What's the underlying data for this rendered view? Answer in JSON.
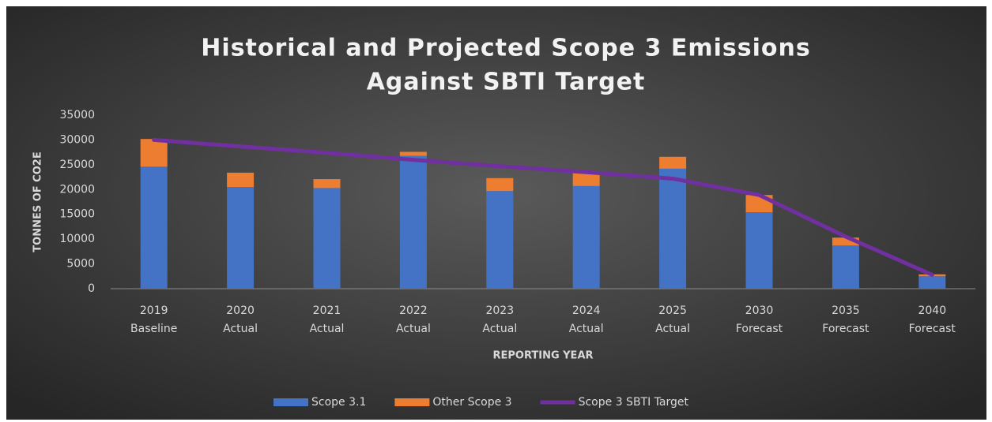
{
  "chart_data": {
    "type": "bar",
    "stacked": true,
    "title": [
      "Historical and Projected Scope 3 Emissions",
      "Against SBTI Target"
    ],
    "y_label": "TONNES OF CO2E",
    "x_label": "REPORTING YEAR",
    "categories": [
      [
        "2019",
        "Baseline"
      ],
      [
        "2020",
        "Actual"
      ],
      [
        "2021",
        "Actual"
      ],
      [
        "2022",
        "Actual"
      ],
      [
        "2023",
        "Actual"
      ],
      [
        "2024",
        "Actual"
      ],
      [
        "2025",
        "Actual"
      ],
      [
        "2030",
        "Forecast"
      ],
      [
        "2035",
        "Forecast"
      ],
      [
        "2040",
        "Forecast"
      ]
    ],
    "series": [
      {
        "name": "Scope 3.1",
        "type": "bar",
        "color": "#4472c4",
        "values": [
          24600,
          20500,
          20300,
          26800,
          19700,
          20700,
          24200,
          15400,
          8700,
          2500
        ]
      },
      {
        "name": "Other Scope 3",
        "type": "bar",
        "color": "#ed7d31",
        "values": [
          5600,
          2900,
          1800,
          800,
          2600,
          2800,
          2400,
          3500,
          1600,
          400
        ]
      },
      {
        "name": "Scope 3 SBTI Target",
        "type": "line",
        "color": "#7030a0",
        "values": [
          30000,
          28700,
          27400,
          26000,
          24700,
          23500,
          22200,
          18900,
          10500,
          2800
        ]
      }
    ],
    "ylim": [
      0,
      35000
    ],
    "yticks": [
      0,
      5000,
      10000,
      15000,
      20000,
      25000,
      30000,
      35000
    ],
    "grid": false,
    "legend": "bottom"
  }
}
